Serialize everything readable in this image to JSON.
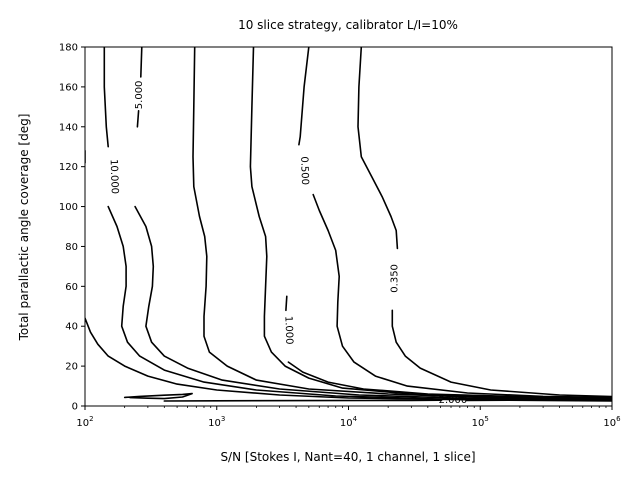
{
  "chart_data": {
    "type": "contour",
    "title": "10 slice strategy, calibrator L/I=10%",
    "xlabel": "S/N [Stokes I, Nant=40, 1 channel, 1 slice]",
    "ylabel": "Total parallactic angle coverage [deg]",
    "xscale": "log",
    "xlim": [
      100,
      1000000
    ],
    "ylim": [
      0,
      180
    ],
    "x_ticks": [
      {
        "value": 100,
        "base": "10",
        "exp": "2"
      },
      {
        "value": 1000,
        "base": "10",
        "exp": "3"
      },
      {
        "value": 10000,
        "base": "10",
        "exp": "4"
      },
      {
        "value": 100000,
        "base": "10",
        "exp": "5"
      },
      {
        "value": 1000000,
        "base": "10",
        "exp": "6"
      }
    ],
    "y_ticks": [
      0,
      20,
      40,
      60,
      80,
      100,
      120,
      140,
      160,
      180
    ],
    "contours": [
      {
        "level": "10.000",
        "segments": [
          [
            [
              100,
              44
            ],
            [
              110,
              37
            ],
            [
              125,
              31
            ],
            [
              150,
              25
            ],
            [
              200,
              20
            ],
            [
              300,
              15
            ],
            [
              500,
              11
            ],
            [
              1000,
              8
            ],
            [
              3000,
              5.5
            ],
            [
              10000,
              4
            ],
            [
              100000,
              3
            ],
            [
              1000000,
              2.5
            ]
          ],
          [
            [
              100,
              122
            ],
            [
              100,
              128
            ]
          ],
          [
            [
              150,
              100
            ],
            [
              175,
              90
            ],
            [
              195,
              80
            ],
            [
              205,
              70
            ],
            [
              205,
              60
            ],
            [
              195,
              50
            ],
            [
              190,
              40
            ],
            [
              210,
              32
            ],
            [
              260,
              25
            ],
            [
              400,
              18
            ],
            [
              800,
              12
            ],
            [
              2000,
              8
            ],
            [
              8000,
              5
            ],
            [
              50000,
              3.5
            ],
            [
              1000000,
              2.8
            ]
          ],
          [
            [
              150,
              130
            ],
            [
              145,
              140
            ],
            [
              140,
              160
            ],
            [
              140,
              180
            ]
          ]
        ],
        "labels": [
          {
            "x": 165,
            "y": 115,
            "rotate": 88
          }
        ]
      },
      {
        "level": "5.000",
        "segments": [
          [
            [
              240,
              100
            ],
            [
              290,
              90
            ],
            [
              320,
              80
            ],
            [
              330,
              70
            ],
            [
              325,
              60
            ],
            [
              305,
              50
            ],
            [
              290,
              40
            ],
            [
              320,
              32
            ],
            [
              400,
              25
            ],
            [
              600,
              19
            ],
            [
              1100,
              13
            ],
            [
              3000,
              8.5
            ],
            [
              12000,
              5.5
            ],
            [
              80000,
              3.8
            ],
            [
              1000000,
              3
            ]
          ],
          [
            [
              270,
              180
            ],
            [
              265,
              165
            ]
          ],
          [
            [
              255,
              148
            ],
            [
              250,
              140
            ]
          ]
        ],
        "labels": [
          {
            "x": 260,
            "y": 156,
            "rotate": -90
          }
        ]
      },
      {
        "level": "2.000",
        "segments": [
          [
            [
              680,
              180
            ],
            [
              670,
              150
            ],
            [
              660,
              125
            ],
            [
              670,
              110
            ],
            [
              740,
              95
            ],
            [
              810,
              85
            ],
            [
              840,
              75
            ],
            [
              830,
              60
            ],
            [
              800,
              45
            ],
            [
              800,
              35
            ],
            [
              880,
              27
            ],
            [
              1200,
              20
            ],
            [
              2000,
              13
            ],
            [
              5000,
              8.5
            ],
            [
              20000,
              6
            ],
            [
              100000,
              4.3
            ],
            [
              1000000,
              3.3
            ]
          ]
        ],
        "labels": []
      },
      {
        "level": "1.000",
        "segments": [
          [
            [
              1900,
              180
            ],
            [
              1850,
              150
            ],
            [
              1800,
              120
            ],
            [
              1850,
              110
            ],
            [
              2100,
              95
            ],
            [
              2350,
              85
            ],
            [
              2400,
              75
            ],
            [
              2350,
              60
            ],
            [
              2300,
              45
            ],
            [
              2300,
              35
            ],
            [
              2600,
              27
            ],
            [
              3300,
              20
            ],
            [
              5000,
              14
            ],
            [
              9000,
              9
            ],
            [
              30000,
              6
            ],
            [
              150000,
              4.5
            ],
            [
              1000000,
              3.6
            ]
          ],
          [
            [
              3400,
              55
            ],
            [
              3350,
              48
            ]
          ],
          [
            [
              3500,
              22
            ],
            [
              4500,
              17
            ],
            [
              7000,
              12
            ],
            [
              13000,
              8.5
            ],
            [
              40000,
              6
            ],
            [
              200000,
              4.7
            ],
            [
              1000000,
              4
            ]
          ]
        ],
        "labels": [
          {
            "x": 3500,
            "y": 38,
            "rotate": 88
          }
        ]
      },
      {
        "level": "0.500",
        "segments": [
          [
            [
              5000,
              180
            ],
            [
              4600,
              160
            ],
            [
              4300,
              135
            ],
            [
              4200,
              131
            ]
          ],
          [
            [
              5400,
              106
            ],
            [
              6000,
              98
            ],
            [
              7000,
              88
            ],
            [
              8000,
              78
            ],
            [
              8500,
              65
            ],
            [
              8300,
              52
            ],
            [
              8200,
              40
            ],
            [
              9000,
              30
            ],
            [
              11000,
              22
            ],
            [
              16000,
              15
            ],
            [
              28000,
              10
            ],
            [
              80000,
              6.5
            ],
            [
              300000,
              4.8
            ],
            [
              1000000,
              4.3
            ]
          ]
        ],
        "labels": [
          {
            "x": 4600,
            "y": 118,
            "rotate": 88
          }
        ]
      },
      {
        "level": "0.350",
        "segments": [
          [
            [
              12500,
              180
            ],
            [
              12000,
              160
            ],
            [
              11800,
              140
            ],
            [
              12500,
              125
            ],
            [
              15000,
              115
            ],
            [
              18000,
              105
            ],
            [
              21000,
              95
            ],
            [
              23000,
              88
            ],
            [
              23500,
              79
            ]
          ],
          [
            [
              21500,
              48
            ],
            [
              21500,
              40
            ],
            [
              23000,
              32
            ],
            [
              27000,
              25
            ],
            [
              35000,
              19
            ],
            [
              60000,
              12
            ],
            [
              120000,
              8
            ],
            [
              400000,
              5.5
            ],
            [
              1000000,
              4.7
            ]
          ]
        ],
        "labels": [
          {
            "x": 22500,
            "y": 64,
            "rotate": -90
          }
        ]
      },
      {
        "level": "2.000",
        "segments": [
          [
            [
              200,
              4.3
            ],
            [
              260,
              4.8
            ],
            [
              400,
              5.4
            ],
            [
              550,
              5.8
            ],
            [
              650,
              6.2
            ],
            [
              550,
              4.5
            ],
            [
              400,
              3.7
            ],
            [
              300,
              3.9
            ],
            [
              220,
              4.2
            ]
          ],
          [
            [
              400,
              2.5
            ],
            [
              1000,
              2.6
            ],
            [
              5000,
              2.7
            ],
            [
              30000,
              2.8
            ],
            [
              50000,
              2.9
            ]
          ],
          [
            [
              78000,
              2.8
            ],
            [
              200000,
              2.9
            ],
            [
              1000000,
              3.1
            ]
          ]
        ],
        "labels": [
          {
            "x": 62000,
            "y": 2.8,
            "rotate": 0
          }
        ]
      }
    ]
  }
}
